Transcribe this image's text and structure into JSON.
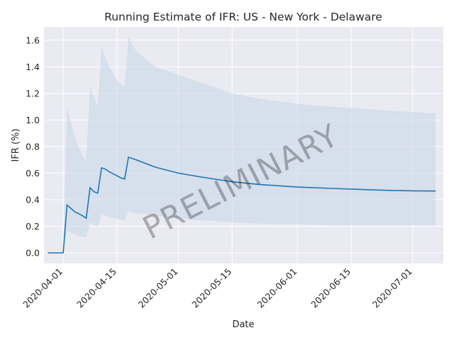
{
  "chart_data": {
    "type": "line",
    "title": "Running Estimate of IFR: US - New York - Delaware",
    "xlabel": "Date",
    "ylabel": "IFR (%)",
    "watermark": "PRELIMINARY",
    "x_tick_labels": [
      "2020-04-01",
      "2020-04-15",
      "2020-05-01",
      "2020-05-15",
      "2020-06-01",
      "2020-06-15",
      "2020-07-01"
    ],
    "y_ticks": [
      0.0,
      0.2,
      0.4,
      0.6,
      0.8,
      1.0,
      1.2,
      1.4,
      1.6
    ],
    "y_tick_labels": [
      "0.0",
      "0.2",
      "0.4",
      "0.6",
      "0.8",
      "1.0",
      "1.2",
      "1.4",
      "1.6"
    ],
    "ylim": [
      -0.08,
      1.7
    ],
    "xlim": [
      "2020-03-27",
      "2020-07-09"
    ],
    "grid": true,
    "colors": {
      "line": "#1f77b4",
      "band": "#c4d5e8",
      "background": "#eaeaf2",
      "grid": "#ffffff"
    },
    "series": [
      {
        "x": [
          "2020-03-28",
          "2020-04-01",
          "2020-04-02",
          "2020-04-04",
          "2020-04-06",
          "2020-04-07",
          "2020-04-08",
          "2020-04-09",
          "2020-04-10",
          "2020-04-11",
          "2020-04-12",
          "2020-04-13",
          "2020-04-15",
          "2020-04-16",
          "2020-04-17",
          "2020-04-18",
          "2020-04-20",
          "2020-04-25",
          "2020-05-01",
          "2020-05-07",
          "2020-05-15",
          "2020-05-22",
          "2020-06-01",
          "2020-06-10",
          "2020-06-20",
          "2020-06-25",
          "2020-07-01",
          "2020-07-07"
        ],
        "values": [
          0.0,
          0.0,
          0.36,
          0.31,
          0.28,
          0.26,
          0.49,
          0.46,
          0.45,
          0.64,
          0.63,
          0.61,
          0.58,
          0.565,
          0.555,
          0.72,
          0.7,
          0.645,
          0.6,
          0.57,
          0.535,
          0.515,
          0.495,
          0.485,
          0.475,
          0.47,
          0.467,
          0.465
        ]
      },
      {
        "x": [
          "2020-03-28",
          "2020-04-01",
          "2020-04-02",
          "2020-04-04",
          "2020-04-06",
          "2020-04-07",
          "2020-04-08",
          "2020-04-09",
          "2020-04-10",
          "2020-04-11",
          "2020-04-12",
          "2020-04-13",
          "2020-04-15",
          "2020-04-16",
          "2020-04-17",
          "2020-04-18",
          "2020-04-20",
          "2020-04-25",
          "2020-05-01",
          "2020-05-07",
          "2020-05-15",
          "2020-05-22",
          "2020-06-01",
          "2020-06-10",
          "2020-06-20",
          "2020-06-25",
          "2020-07-01",
          "2020-07-07"
        ],
        "lower": [
          0.0,
          0.0,
          0.17,
          0.14,
          0.12,
          0.12,
          0.23,
          0.21,
          0.2,
          0.29,
          0.28,
          0.27,
          0.255,
          0.25,
          0.245,
          0.31,
          0.3,
          0.28,
          0.26,
          0.245,
          0.23,
          0.22,
          0.215,
          0.21,
          0.21,
          0.21,
          0.21,
          0.21
        ],
        "upper": [
          0.0,
          0.0,
          1.1,
          0.87,
          0.73,
          0.69,
          1.24,
          1.17,
          1.1,
          1.55,
          1.47,
          1.4,
          1.3,
          1.27,
          1.25,
          1.62,
          1.52,
          1.4,
          1.34,
          1.28,
          1.2,
          1.16,
          1.12,
          1.1,
          1.08,
          1.07,
          1.06,
          1.05
        ]
      }
    ]
  }
}
